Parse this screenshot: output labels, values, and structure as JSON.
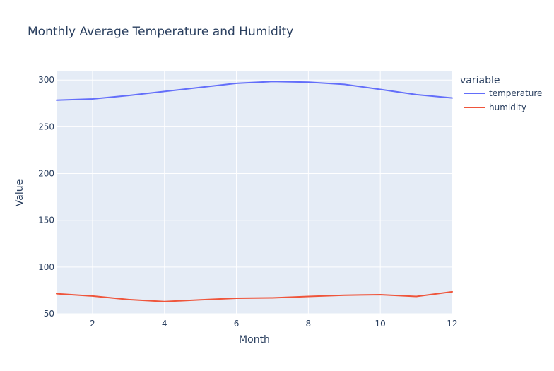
{
  "chart_data": {
    "type": "line",
    "title": "Monthly Average Temperature and Humidity",
    "xlabel": "Month",
    "ylabel": "Value",
    "xlim": [
      1,
      12
    ],
    "ylim": [
      50,
      310
    ],
    "xticks": [
      2,
      4,
      6,
      8,
      10,
      12
    ],
    "yticks": [
      50,
      100,
      150,
      200,
      250,
      300
    ],
    "grid": true,
    "legend": {
      "title": "variable",
      "placement": "right"
    },
    "x": [
      1,
      2,
      3,
      4,
      5,
      6,
      7,
      8,
      9,
      10,
      11,
      12
    ],
    "series": [
      {
        "name": "temperature",
        "color": "#636efa",
        "values": [
          278.5,
          279.8,
          283.5,
          287.8,
          292.2,
          296.5,
          298.4,
          297.7,
          295.3,
          290.0,
          284.4,
          280.8
        ]
      },
      {
        "name": "humidity",
        "color": "#ef553b",
        "values": [
          71.5,
          69.0,
          65.2,
          63.0,
          65.0,
          66.6,
          67.0,
          68.5,
          69.9,
          70.4,
          68.5,
          73.5
        ]
      }
    ],
    "colors": {
      "plot_bg": "#e5ecf6",
      "grid": "#ffffff",
      "text": "#2a3f5f"
    }
  }
}
